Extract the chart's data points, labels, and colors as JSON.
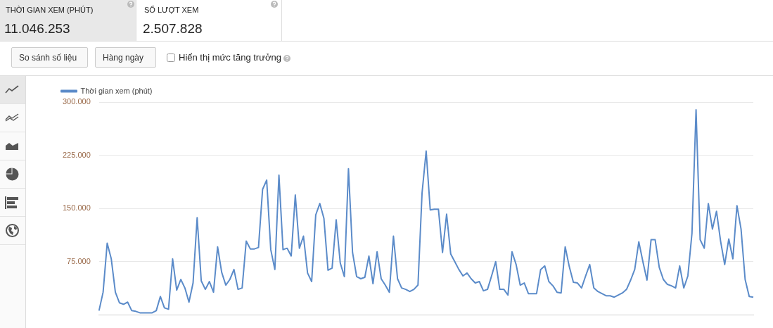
{
  "chart_data": {
    "type": "line",
    "annotations": [
      "THỜI GIAN XEM (PHÚT)",
      "11.046.253",
      "SỐ LƯỢT XEM",
      "2.507.828",
      "So sánh số liệu",
      "Hàng ngày",
      "Hiển thị mức tăng trưởng"
    ],
    "categories": [
      null,
      null,
      null,
      null,
      null,
      null,
      null,
      null,
      null,
      null,
      null,
      null,
      null,
      null,
      null,
      null,
      null,
      null,
      null,
      null,
      null,
      null,
      null,
      null,
      null,
      null,
      null,
      null,
      null,
      null,
      null,
      null,
      null,
      null,
      null,
      null,
      null,
      null,
      null,
      null,
      null,
      null,
      null,
      null,
      null,
      null,
      null,
      null,
      null,
      null,
      null,
      null,
      null,
      null,
      null,
      null,
      null,
      null,
      null,
      null,
      null,
      null,
      null,
      null,
      null,
      null,
      null,
      null,
      null,
      null,
      null,
      null,
      null,
      null,
      null,
      null,
      null,
      null,
      null,
      null,
      null,
      null,
      null,
      null,
      null,
      null,
      null,
      null,
      null,
      null,
      null,
      null,
      null,
      null,
      null,
      null,
      null,
      null,
      null,
      null,
      null,
      null,
      null,
      null,
      null,
      null,
      null,
      null,
      null,
      null,
      null,
      null,
      null,
      null,
      null,
      null,
      null,
      null,
      null,
      null,
      null,
      null,
      null,
      null,
      null,
      null,
      null,
      null,
      null,
      null,
      null,
      null,
      null,
      null,
      null,
      null,
      null,
      null,
      null,
      null,
      null,
      null,
      null,
      null,
      null,
      null,
      null,
      null,
      null,
      null,
      null,
      null,
      null,
      null,
      null,
      null,
      null,
      null,
      null,
      null,
      null
    ],
    "series": [
      {
        "name": "Thời gian xem (phút)",
        "color": "#5b8bc9",
        "values": [
          6000,
          32000,
          101000,
          79000,
          32000,
          17000,
          15000,
          18000,
          6000,
          5000,
          3000,
          3000,
          3000,
          3000,
          6000,
          26000,
          10000,
          8000,
          79000,
          35000,
          50000,
          38000,
          18000,
          45000,
          137000,
          48000,
          36000,
          47000,
          32000,
          96000,
          60000,
          42000,
          50000,
          64000,
          36000,
          38000,
          104000,
          93000,
          93000,
          95000,
          177000,
          190000,
          92000,
          64000,
          197000,
          92000,
          94000,
          83000,
          169000,
          94000,
          111000,
          59000,
          47000,
          141000,
          157000,
          136000,
          63000,
          66000,
          134000,
          73000,
          54000,
          206000,
          88000,
          54000,
          51000,
          53000,
          83000,
          44000,
          89000,
          51000,
          42000,
          32000,
          111000,
          51000,
          38000,
          36000,
          33000,
          36000,
          42000,
          172000,
          231000,
          148000,
          149000,
          149000,
          88000,
          142000,
          86000,
          75000,
          64000,
          55000,
          59000,
          51000,
          45000,
          47000,
          34000,
          36000,
          55000,
          75000,
          36000,
          36000,
          28000,
          89000,
          71000,
          42000,
          45000,
          30000,
          30000,
          30000,
          64000,
          69000,
          47000,
          41000,
          32000,
          31000,
          96000,
          68000,
          46000,
          45000,
          38000,
          55000,
          71000,
          38000,
          33000,
          30000,
          27000,
          27000,
          25000,
          28000,
          31000,
          36000,
          49000,
          64000,
          103000,
          75000,
          49000,
          106000,
          106000,
          67000,
          50000,
          43000,
          41000,
          38000,
          69000,
          38000,
          55000,
          115000,
          289000,
          106000,
          94000,
          157000,
          121000,
          146000,
          104000,
          71000,
          107000,
          79000,
          154000,
          121000,
          50000,
          26000,
          25000
        ]
      }
    ],
    "ylim": [
      0,
      300000
    ],
    "yticks": [
      {
        "value": 75000,
        "label": "75.000"
      },
      {
        "value": 150000,
        "label": "150.000"
      },
      {
        "value": 225000,
        "label": "225.000"
      },
      {
        "value": 300000,
        "label": "300.000"
      }
    ],
    "grid": "y",
    "legend": "top left",
    "tick_labels": "y",
    "marker": "none",
    "line_style": "solid"
  }
}
